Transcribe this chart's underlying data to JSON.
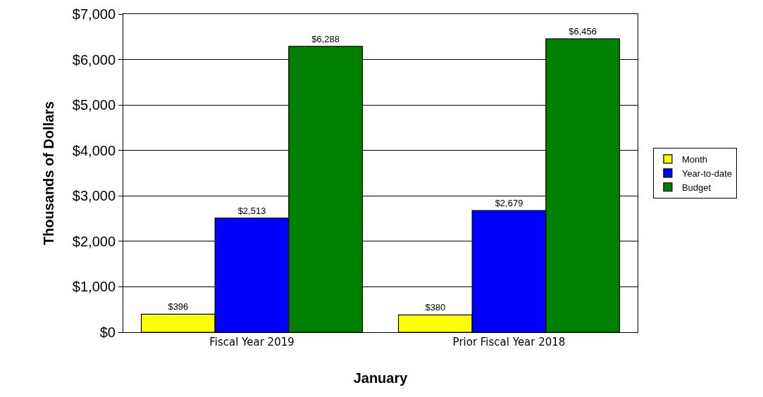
{
  "chart_data": {
    "type": "bar",
    "xlabel": "January",
    "ylabel": "Thousands of Dollars",
    "categories": [
      "Fiscal Year 2019",
      "Prior Fiscal Year 2018"
    ],
    "series": [
      {
        "name": "Month",
        "color": "#ffff00",
        "values": [
          396,
          380
        ],
        "value_labels": [
          "$396",
          "$380"
        ]
      },
      {
        "name": "Year-to-date",
        "color": "#0000ff",
        "values": [
          2513,
          2679
        ],
        "value_labels": [
          "$2,513",
          "$2,679"
        ]
      },
      {
        "name": "Budget",
        "color": "#008000",
        "values": [
          6288,
          6456
        ],
        "value_labels": [
          "$6,288",
          "$6,456"
        ]
      }
    ],
    "ylim": [
      0,
      7000
    ],
    "yticks": [
      {
        "value": 0,
        "label": "$0"
      },
      {
        "value": 1000,
        "label": "$1,000"
      },
      {
        "value": 2000,
        "label": "$2,000"
      },
      {
        "value": 3000,
        "label": "$3,000"
      },
      {
        "value": 4000,
        "label": "$4,000"
      },
      {
        "value": 5000,
        "label": "$5,000"
      },
      {
        "value": 6000,
        "label": "$6,000"
      },
      {
        "value": 7000,
        "label": "$7,000"
      }
    ],
    "grid": "y",
    "legend": "right"
  }
}
